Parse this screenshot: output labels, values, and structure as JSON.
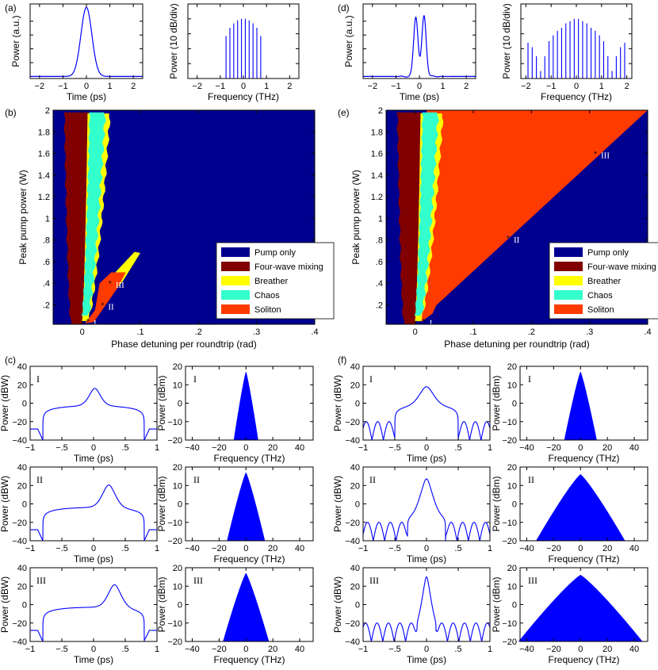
{
  "colors": {
    "line": "#0000ff",
    "pump_only": "#00008f",
    "fwm": "#800000",
    "breather": "#ffff00",
    "chaos": "#33ffcc",
    "soliton": "#ff3b00"
  },
  "panel_letters": [
    "(a)",
    "(b)",
    "(c)",
    "(d)",
    "(e)",
    "(f)"
  ],
  "labels": {
    "time_ps": "Time (ps)",
    "freq_thz": "Frequency (THz)",
    "power_au": "Power (a.u.)",
    "power_10db": "Power (10 dB/div)",
    "power_dbw": "Power (dBW)",
    "power_dbm": "Power (dBm)",
    "peak_pump": "Peak pump power (W)",
    "detuning": "Phase detuning per roundtrip (rad)"
  },
  "roman": [
    "I",
    "II",
    "III"
  ],
  "legend": [
    "Pump only",
    "Four-wave mixing",
    "Breather",
    "Chaos",
    "Soliton"
  ],
  "chart_data": [
    {
      "id": "a1",
      "type": "line",
      "xlabel": "Time (ps)",
      "ylabel": "Power (a.u.)",
      "xlim": [
        -2.4,
        2.4
      ],
      "xticks": [
        -2,
        -1,
        0,
        1,
        2
      ],
      "series": [
        {
          "shape": "gaussian",
          "center": 0,
          "width": 0.33,
          "peak": 1
        }
      ]
    },
    {
      "id": "a2",
      "type": "bar",
      "xlabel": "Frequency (THz)",
      "ylabel": "Power (10 dB/div)",
      "xlim": [
        -2.4,
        2.4
      ],
      "xticks": [
        -2,
        -1,
        0,
        1,
        2
      ],
      "x": [
        -0.75,
        -0.5833,
        -0.4167,
        -0.25,
        -0.0833,
        0.0833,
        0.25,
        0.4167,
        0.5833,
        0.75
      ],
      "values": [
        0.57,
        0.68,
        0.74,
        0.78,
        0.8,
        0.8,
        0.78,
        0.74,
        0.68,
        0.57
      ]
    },
    {
      "id": "b",
      "type": "heatmap",
      "xlabel": "Phase detuning per roundtrip (rad)",
      "ylabel": "Peak pump power (W)",
      "xlim": [
        -0.05,
        0.4
      ],
      "ylim": [
        0.02,
        2
      ],
      "xticks": [
        0,
        0.1,
        0.2,
        0.3,
        0.4
      ],
      "yticks": [
        0.2,
        0.4,
        0.6,
        0.8,
        1,
        1.2,
        1.4,
        1.6,
        1.8,
        2
      ],
      "legend": [
        "Pump only",
        "Four-wave mixing",
        "Breather",
        "Chaos",
        "Soliton"
      ],
      "legend_position": "bottom-right",
      "markers": [
        {
          "label": "I",
          "x": 0.01,
          "y": 0.05
        },
        {
          "label": "II",
          "x": 0.035,
          "y": 0.2
        },
        {
          "label": "III",
          "x": 0.048,
          "y": 0.4
        }
      ]
    },
    {
      "id": "c",
      "type": "line",
      "grid": "3x2",
      "rows": [
        {
          "label": "I",
          "time": {
            "xlim": [
              -1,
              1
            ],
            "ylim": [
              -40,
              40
            ],
            "peak_t": 0.02,
            "peak_dbw": 15,
            "background_dbw": -3,
            "wall_t": 0.8
          },
          "spectrum": {
            "xlim": [
              -45,
              50
            ],
            "ylim": [
              -20,
              20
            ],
            "peak_dbm": 17,
            "half_width_thz": 9
          }
        },
        {
          "label": "II",
          "time": {
            "xlim": [
              -1,
              1
            ],
            "ylim": [
              -40,
              40
            ],
            "peak_t": 0.24,
            "peak_dbw": 20,
            "background_dbw": -4,
            "wall_t": 0.8
          },
          "spectrum": {
            "xlim": [
              -45,
              50
            ],
            "ylim": [
              -20,
              20
            ],
            "peak_dbm": 17,
            "half_width_thz": 14
          }
        },
        {
          "label": "III",
          "time": {
            "xlim": [
              -1,
              1
            ],
            "ylim": [
              -40,
              40
            ],
            "peak_t": 0.33,
            "peak_dbw": 21,
            "background_dbw": -3,
            "wall_t": 0.8
          },
          "spectrum": {
            "xlim": [
              -45,
              50
            ],
            "ylim": [
              -20,
              20
            ],
            "peak_dbm": 17,
            "half_width_thz": 17
          }
        }
      ]
    },
    {
      "id": "d1",
      "type": "line",
      "xlabel": "Time (ps)",
      "ylabel": "Power (a.u.)",
      "xlim": [
        -2.4,
        2.4
      ],
      "xticks": [
        -2,
        -1,
        0,
        1,
        2
      ],
      "series": [
        {
          "shape": "double-peak",
          "peaks": [
            -0.15,
            0.2
          ],
          "peak": 0.92,
          "dip": 0.65
        }
      ]
    },
    {
      "id": "d2",
      "type": "bar",
      "xlabel": "Frequency (THz)",
      "ylabel": "Power (10 dB/div)",
      "xlim": [
        -2.2,
        2.2
      ],
      "xticks": [
        -2,
        -1,
        0,
        1,
        2
      ],
      "x": [
        -1.9167,
        -1.75,
        -1.5833,
        -1.4167,
        -1.25,
        -1.0833,
        -0.9167,
        -0.75,
        -0.5833,
        -0.4167,
        -0.25,
        -0.0833,
        0.0833,
        0.25,
        0.4167,
        0.5833,
        0.75,
        0.9167,
        1.0833,
        1.25,
        1.4167,
        1.5833,
        1.75,
        1.9167
      ],
      "values": [
        0.48,
        0.42,
        0.3,
        0.1,
        0.3,
        0.5,
        0.58,
        0.64,
        0.68,
        0.74,
        0.77,
        0.8,
        0.8,
        0.77,
        0.74,
        0.68,
        0.64,
        0.58,
        0.5,
        0.3,
        0.1,
        0.3,
        0.42,
        0.48
      ]
    },
    {
      "id": "e",
      "type": "heatmap",
      "xlabel": "Phase detuning per roundtrip (rad)",
      "ylabel": "Peak pump power (W)",
      "xlim": [
        -0.05,
        0.4
      ],
      "ylim": [
        0.02,
        2
      ],
      "xticks": [
        0,
        0.1,
        0.2,
        0.3,
        0.4
      ],
      "yticks": [
        0.2,
        0.4,
        0.6,
        0.8,
        1,
        1.2,
        1.4,
        1.6,
        1.8,
        2
      ],
      "legend": [
        "Pump only",
        "Four-wave mixing",
        "Breather",
        "Chaos",
        "Soliton"
      ],
      "legend_position": "bottom-right",
      "markers": [
        {
          "label": "I",
          "x": 0.015,
          "y": 0.05
        },
        {
          "label": "II",
          "x": 0.16,
          "y": 0.82
        },
        {
          "label": "III",
          "x": 0.31,
          "y": 1.6
        }
      ]
    },
    {
      "id": "f",
      "type": "line",
      "grid": "3x2",
      "rows": [
        {
          "label": "I",
          "time": {
            "xlim": [
              -1,
              1
            ],
            "ylim": [
              -40,
              40
            ],
            "peak_t": 0,
            "peak_dbw": 17,
            "background_dbw": -3,
            "wall_t": 0.5
          },
          "spectrum": {
            "xlim": [
              -45,
              50
            ],
            "ylim": [
              -20,
              20
            ],
            "peak_dbm": 17,
            "half_width_thz": 12
          }
        },
        {
          "label": "II",
          "time": {
            "xlim": [
              -1,
              1
            ],
            "ylim": [
              -40,
              40
            ],
            "peak_t": 0,
            "peak_dbw": 27,
            "background_dbw": -11,
            "wall_t": 0.3
          },
          "spectrum": {
            "xlim": [
              -45,
              50
            ],
            "ylim": [
              -20,
              20
            ],
            "peak_dbm": 16,
            "half_width_thz": 33
          }
        },
        {
          "label": "III",
          "time": {
            "xlim": [
              -1,
              1
            ],
            "ylim": [
              -40,
              40
            ],
            "peak_t": 0,
            "peak_dbw": 30,
            "background_dbw": -16,
            "wall_t": 0.15
          },
          "spectrum": {
            "xlim": [
              -45,
              50
            ],
            "ylim": [
              -20,
              20
            ],
            "peak_dbm": 16,
            "half_width_thz": 46
          }
        }
      ]
    }
  ]
}
